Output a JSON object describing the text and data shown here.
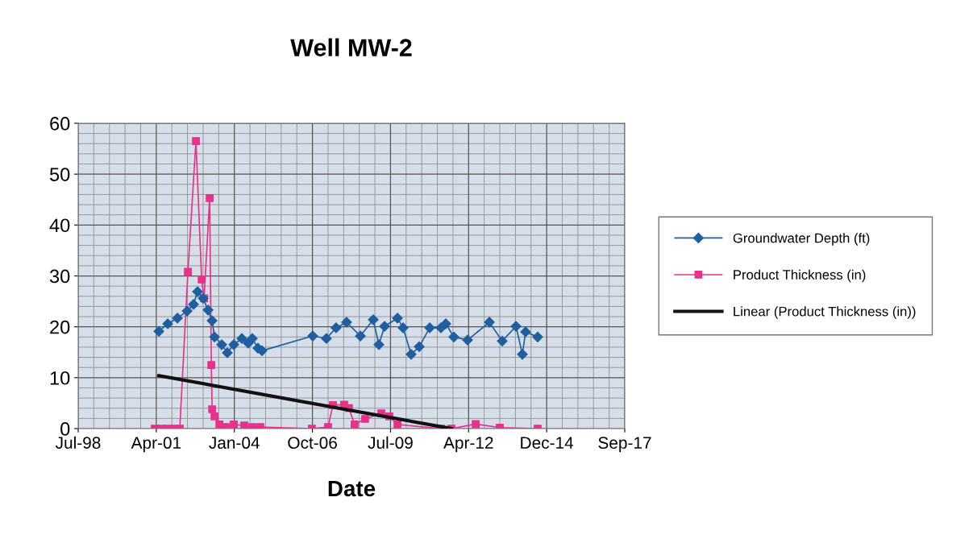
{
  "chart_data": {
    "type": "line",
    "title": "Well MW-2",
    "xlabel": "Date",
    "xlim": [
      "1998-07-25",
      "2017-09-23"
    ],
    "xticks": [
      {
        "value": "1998-07-25",
        "label": "Jul-98"
      },
      {
        "value": "2001-04-20",
        "label": "Apr-01"
      },
      {
        "value": "2004-01-15",
        "label": "Jan-04"
      },
      {
        "value": "2006-10-11",
        "label": "Oct-06"
      },
      {
        "value": "2009-07-07",
        "label": "Jul-09"
      },
      {
        "value": "2012-04-02",
        "label": "Apr-12"
      },
      {
        "value": "2014-12-28",
        "label": "Dec-14"
      },
      {
        "value": "2017-09-23",
        "label": "Sep-17"
      }
    ],
    "ylim": [
      0,
      60
    ],
    "yticks": [
      0,
      10,
      20,
      30,
      40,
      50,
      60
    ],
    "grid": true,
    "legend": "right",
    "series": [
      {
        "name": "Groundwater Depth (ft)",
        "color": "#1f5fa0",
        "marker": "diamond",
        "x": [
          "2001-05-23",
          "2001-09-14",
          "2002-01-16",
          "2002-05-20",
          "2002-08-10",
          "2002-10-01",
          "2002-12-12",
          "2003-02-12",
          "2003-04-05",
          "2003-05-06",
          "2003-08-06",
          "2003-10-17",
          "2004-01-08",
          "2004-04-20",
          "2004-07-11",
          "2004-09-01",
          "2004-11-12",
          "2005-01-03",
          "2006-10-15",
          "2007-04-08",
          "2007-08-10",
          "2007-12-22",
          "2008-06-16",
          "2008-11-28",
          "2009-02-08",
          "2009-04-22",
          "2009-10-04",
          "2009-12-15",
          "2010-03-28",
          "2010-07-10",
          "2010-11-21",
          "2011-04-14",
          "2011-06-15",
          "2011-09-26",
          "2012-03-20",
          "2012-12-24",
          "2013-06-07",
          "2013-11-30",
          "2014-02-20",
          "2014-04-02",
          "2014-09-04"
        ],
        "values": [
          19.1,
          20.6,
          21.7,
          23.1,
          24.4,
          26.9,
          25.6,
          23.3,
          21.2,
          18.0,
          16.5,
          14.9,
          16.5,
          17.7,
          16.8,
          17.7,
          15.8,
          15.3,
          18.2,
          17.7,
          19.8,
          20.9,
          18.2,
          21.4,
          16.5,
          20.1,
          21.7,
          19.8,
          14.6,
          16.1,
          19.8,
          19.8,
          20.6,
          18.0,
          17.4,
          20.9,
          17.2,
          20.1,
          14.6,
          19.0,
          18.0
        ]
      },
      {
        "name": "Product Thickness (in)",
        "color": "#e8318a",
        "marker": "square",
        "x": [
          "2001-04-01",
          "2001-06-22",
          "2001-09-13",
          "2001-12-05",
          "2002-02-15",
          "2002-05-30",
          "2002-09-10",
          "2002-11-22",
          "2002-12-23",
          "2003-03-05",
          "2003-03-26",
          "2003-04-05",
          "2003-05-06",
          "2003-07-07",
          "2003-09-27",
          "2004-01-08",
          "2004-05-21",
          "2004-09-01",
          "2004-12-13",
          "2006-10-04",
          "2007-04-29",
          "2007-06-30",
          "2007-11-21",
          "2008-01-22",
          "2008-04-03",
          "2008-08-16",
          "2009-03-11",
          "2009-06-22",
          "2009-10-04",
          "2011-04-14",
          "2011-08-26",
          "2012-07-02",
          "2013-05-07",
          "2014-09-04"
        ],
        "values": [
          0,
          0,
          0,
          0,
          0,
          30.8,
          56.5,
          29.3,
          25.6,
          45.3,
          12.5,
          3.8,
          2.4,
          0.8,
          0.3,
          0.8,
          0.6,
          0.3,
          0.3,
          0,
          0.3,
          4.6,
          4.7,
          4.0,
          0.8,
          1.9,
          3.0,
          2.4,
          0.8,
          0,
          0,
          0.9,
          0.2,
          0
        ]
      },
      {
        "name": "Linear (Product Thickness (in))",
        "color": "#111111",
        "marker": "none",
        "x": [
          "2001-05-23",
          "2011-08-26"
        ],
        "values": [
          10.4,
          0
        ]
      }
    ]
  }
}
